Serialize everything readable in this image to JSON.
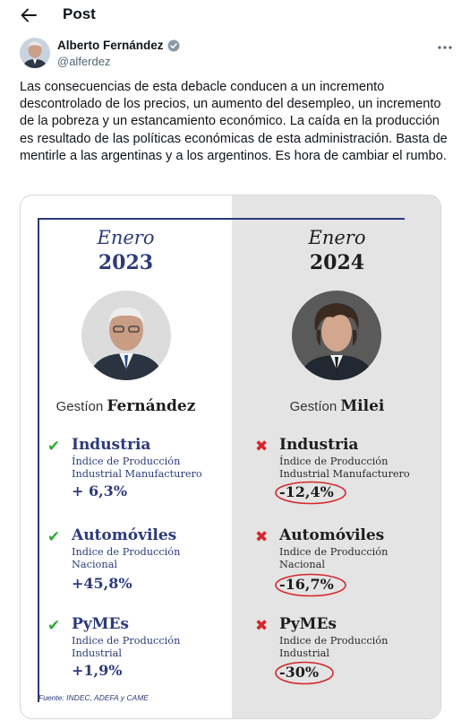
{
  "header": {
    "title": "Post",
    "back_icon": "arrow-left-icon"
  },
  "author": {
    "name": "Alberto Fernández",
    "handle": "@alferdez",
    "verified_icon": "verified-badge-icon",
    "more_icon": "more-horizontal-icon"
  },
  "post": {
    "text": "Las consecuencias de esta debacle conducen a un incremento descontrolado de los precios, un aumento del desempleo, un incremento de la pobreza y un estancamiento económico. La caída en la producción es resultado de las políticas económicas de esta administración. Basta de mentirle a las argentinas y a los argentinos. Es hora de cambiar el rumbo."
  },
  "infographic": {
    "colors": {
      "accent": "#2d3a7a",
      "good": "#2eaa3a",
      "bad": "#d6262c",
      "right_panel": "#e4e4e4"
    },
    "left": {
      "month": "Enero",
      "year": "2023",
      "gestion_prefix": "Gestíon",
      "gestion_name": "Fernández",
      "mark_icon": "check-icon",
      "items": [
        {
          "name": "Industria",
          "desc": "Índice de Producción Industrial Manufacturero",
          "value": "+ 6,3%"
        },
        {
          "name": "Automóviles",
          "desc": "Indice de Producción Nacional",
          "value": "+45,8%"
        },
        {
          "name": "PyMEs",
          "desc": "Indice de Producción Industrial",
          "value": "+1,9%"
        }
      ]
    },
    "right": {
      "month": "Enero",
      "year": "2024",
      "gestion_prefix": "Gestíon",
      "gestion_name": "Milei",
      "mark_icon": "cross-icon",
      "items": [
        {
          "name": "Industria",
          "desc": "Índice de Producción Industrial Manufacturero",
          "value": "-12,4%"
        },
        {
          "name": "Automóviles",
          "desc": "Indice de Producción Nacional",
          "value": "-16,7%"
        },
        {
          "name": "PyMEs",
          "desc": "Indice de Producción Industrial",
          "value": "-30%"
        }
      ]
    },
    "source": "Fuente: INDEC, ADEFA y CAME"
  }
}
